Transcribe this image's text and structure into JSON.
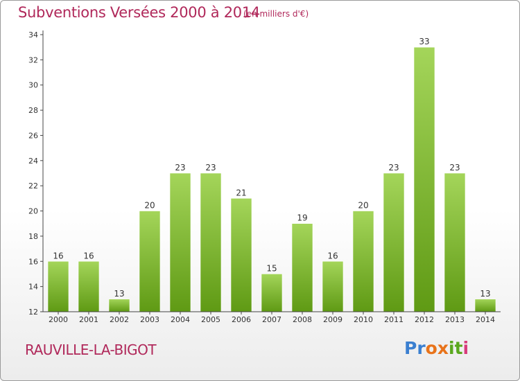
{
  "header": {
    "title": "Subventions Versées 2000 à 2014",
    "unit": "(en milliers d'€)"
  },
  "footer": {
    "commune": "RAUVILLE-LA-BIGOT",
    "logo_letters": [
      "P",
      "r",
      "o",
      "x",
      "i",
      "t",
      "i"
    ],
    "logo_colors": [
      "#3a7fd0",
      "#3a7fd0",
      "#e8731a",
      "#e8731a",
      "#5aa81e",
      "#5aa81e",
      "#d83c7c"
    ]
  },
  "colors": {
    "title": "#b0285a",
    "bar_top": "#a4d55a",
    "bar_bottom": "#5f9a14",
    "axis": "#444444"
  },
  "chart_data": {
    "type": "bar",
    "title": "Subventions Versées 2000 à 2014",
    "subtitle": "(en milliers d'€)",
    "categories": [
      "2000",
      "2001",
      "2002",
      "2003",
      "2004",
      "2005",
      "2006",
      "2007",
      "2008",
      "2009",
      "2010",
      "2011",
      "2012",
      "2013",
      "2014"
    ],
    "values": [
      16,
      16,
      13,
      20,
      23,
      23,
      21,
      15,
      19,
      16,
      20,
      23,
      33,
      23,
      13
    ],
    "ylim": [
      12,
      34
    ],
    "yticks": [
      12,
      14,
      16,
      18,
      20,
      22,
      24,
      26,
      28,
      30,
      32,
      34
    ],
    "xlabel": "",
    "ylabel": "",
    "grid": false,
    "data_labels": true
  }
}
